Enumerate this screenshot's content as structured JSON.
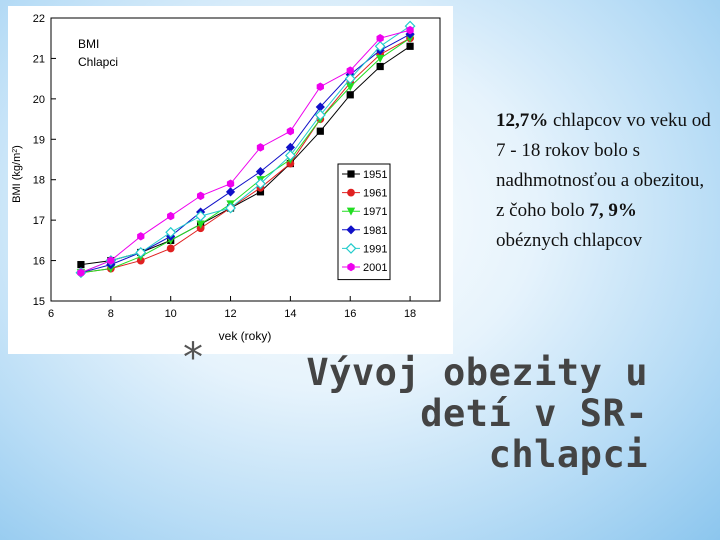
{
  "chart_data": {
    "type": "line",
    "title_line1": "BMI",
    "title_line2": "Chlapci",
    "xlabel": "vek (roky)",
    "ylabel_main": "BMI (kg/m",
    "ylabel_sup": "2",
    "ylabel_end": ")",
    "xlim": [
      6,
      19
    ],
    "ylim": [
      15,
      22
    ],
    "xticks": [
      6,
      8,
      10,
      12,
      14,
      16,
      18
    ],
    "yticks": [
      15,
      16,
      17,
      18,
      19,
      20,
      21,
      22
    ],
    "x": [
      7,
      8,
      9,
      10,
      11,
      12,
      13,
      14,
      15,
      16,
      17,
      18
    ],
    "series": [
      {
        "name": "1951",
        "color": "#000000",
        "marker": "square",
        "values": [
          15.9,
          16.0,
          16.2,
          16.5,
          16.9,
          17.3,
          17.7,
          18.4,
          19.2,
          20.1,
          20.8,
          21.3
        ]
      },
      {
        "name": "1961",
        "color": "#e02020",
        "marker": "circle",
        "values": [
          15.7,
          15.8,
          16.0,
          16.3,
          16.8,
          17.3,
          17.8,
          18.4,
          19.5,
          20.4,
          21.1,
          21.5
        ]
      },
      {
        "name": "1971",
        "color": "#22dd22",
        "marker": "triangle-down",
        "values": [
          15.7,
          15.8,
          16.1,
          16.5,
          16.9,
          17.4,
          18.0,
          18.5,
          19.5,
          20.3,
          21.0,
          21.5
        ]
      },
      {
        "name": "1981",
        "color": "#1010c8",
        "marker": "diamond",
        "values": [
          15.7,
          15.9,
          16.2,
          16.6,
          17.2,
          17.7,
          18.2,
          18.8,
          19.8,
          20.6,
          21.2,
          21.6
        ]
      },
      {
        "name": "1991",
        "color": "#22cccc",
        "marker": "diamond-open",
        "values": [
          15.7,
          16.0,
          16.2,
          16.7,
          17.1,
          17.3,
          17.9,
          18.6,
          19.6,
          20.5,
          21.3,
          21.8
        ]
      },
      {
        "name": "2001",
        "color": "#ee00ee",
        "marker": "hexagon",
        "values": [
          15.7,
          16.0,
          16.6,
          17.1,
          17.6,
          17.9,
          18.8,
          19.2,
          20.3,
          20.7,
          21.5,
          21.7
        ]
      }
    ]
  },
  "description": {
    "pct1": "12,7%",
    "text1": " chlapcov vo veku od 7 - 18 rokov bolo s nadhmotnosťou a obezitou, z čoho bolo ",
    "pct2": "7, 9%",
    "text2": " obéznych chlapcov"
  },
  "slide_title": {
    "bullet": "*",
    "line1": "Vývoj obezity u detí v SR-",
    "line2": "chlapci"
  }
}
